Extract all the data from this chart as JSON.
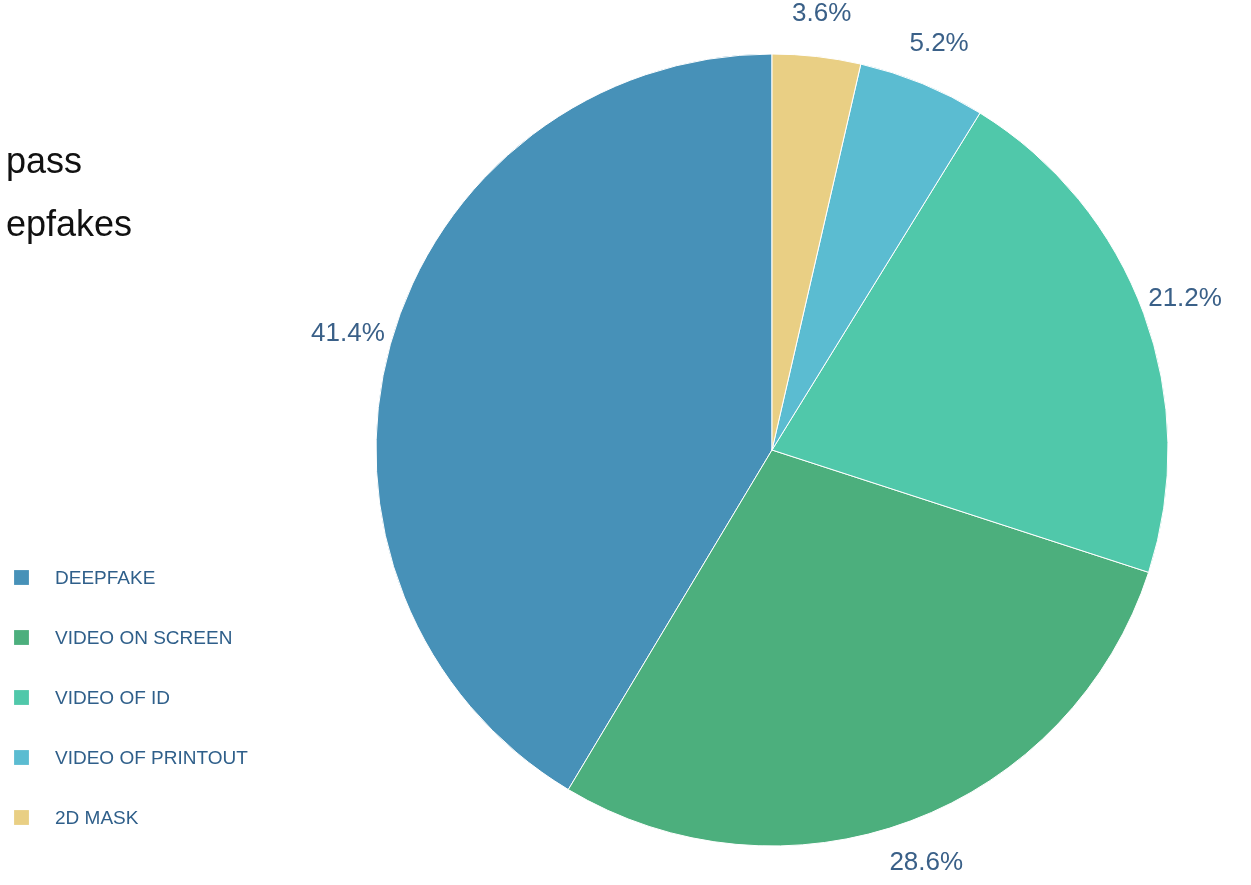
{
  "chart_data": {
    "type": "pie",
    "annotations": [
      "pass",
      "epfakes"
    ],
    "categories": [
      "DEEPFAKE",
      "VIDEO ON SCREEN",
      "VIDEO OF ID",
      "VIDEO OF PRINTOUT",
      "2D MASK"
    ],
    "values": [
      41.4,
      28.6,
      21.2,
      5.2,
      3.6
    ],
    "colors": [
      "#4791b8",
      "#4caf7d",
      "#50c8aa",
      "#5bbcd1",
      "#e9cf84"
    ],
    "value_labels": [
      "41.4%",
      "28.6%",
      "21.2%",
      "5.2%",
      "3.6%"
    ],
    "legend": "bottom left"
  }
}
